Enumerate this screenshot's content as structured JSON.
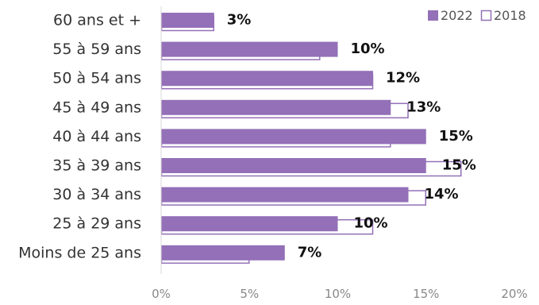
{
  "chart_data": {
    "type": "bar",
    "orientation": "horizontal",
    "categories": [
      "60 ans et +",
      "55 à 59 ans",
      "50 à 54 ans",
      "45 à 49 ans",
      "40 à 44 ans",
      "35 à 39 ans",
      "30 à 34 ans",
      "25 à 29 ans",
      "Moins de 25 ans"
    ],
    "series": [
      {
        "name": "2022",
        "values": [
          3,
          10,
          12,
          13,
          15,
          15,
          14,
          10,
          7
        ],
        "labels": [
          "3%",
          "10%",
          "12%",
          "13%",
          "15%",
          "15%",
          "14%",
          "10%",
          "7%"
        ],
        "color": "#9370b8"
      },
      {
        "name": "2018",
        "values": [
          3,
          9,
          12,
          14,
          13,
          17,
          15,
          12,
          5
        ],
        "color": "#ffffff",
        "stroke": "#9370b8"
      }
    ],
    "xlim": [
      0,
      20
    ],
    "x_ticks": [
      {
        "value": 0,
        "label": "0%"
      },
      {
        "value": 5,
        "label": "5%"
      },
      {
        "value": 10,
        "label": "10%"
      },
      {
        "value": 15,
        "label": "15%"
      },
      {
        "value": 20,
        "label": "20%"
      }
    ],
    "title": "",
    "xlabel": "",
    "ylabel": "",
    "grid": false,
    "legend": "top-right",
    "colors": {
      "bar_2022": "#9370b8",
      "bar_2018_stroke": "#9370b8",
      "category_text": "#333333",
      "tick_text": "#888888",
      "axis_line": "#d9d9d9",
      "data_label": "#111111"
    }
  }
}
